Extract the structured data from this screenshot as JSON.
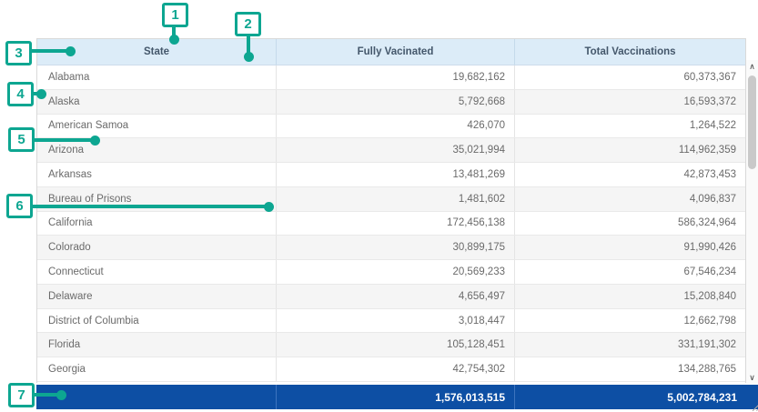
{
  "table": {
    "columns": [
      {
        "label": "State"
      },
      {
        "label": "Fully Vacinated"
      },
      {
        "label": "Total Vaccinations"
      }
    ],
    "rows": [
      {
        "state": "Alabama",
        "fully_vaccinated": "19,682,162",
        "total_vaccinations": "60,373,367"
      },
      {
        "state": "Alaska",
        "fully_vaccinated": "5,792,668",
        "total_vaccinations": "16,593,372"
      },
      {
        "state": "American Samoa",
        "fully_vaccinated": "426,070",
        "total_vaccinations": "1,264,522"
      },
      {
        "state": "Arizona",
        "fully_vaccinated": "35,021,994",
        "total_vaccinations": "114,962,359"
      },
      {
        "state": "Arkansas",
        "fully_vaccinated": "13,481,269",
        "total_vaccinations": "42,873,453"
      },
      {
        "state": "Bureau of Prisons",
        "fully_vaccinated": "1,481,602",
        "total_vaccinations": "4,096,837"
      },
      {
        "state": "California",
        "fully_vaccinated": "172,456,138",
        "total_vaccinations": "586,324,964"
      },
      {
        "state": "Colorado",
        "fully_vaccinated": "30,899,175",
        "total_vaccinations": "91,990,426"
      },
      {
        "state": "Connecticut",
        "fully_vaccinated": "20,569,233",
        "total_vaccinations": "67,546,234"
      },
      {
        "state": "Delaware",
        "fully_vaccinated": "4,656,497",
        "total_vaccinations": "15,208,840"
      },
      {
        "state": "District of Columbia",
        "fully_vaccinated": "3,018,447",
        "total_vaccinations": "12,662,798"
      },
      {
        "state": "Florida",
        "fully_vaccinated": "105,128,451",
        "total_vaccinations": "331,191,302"
      },
      {
        "state": "Georgia",
        "fully_vaccinated": "42,754,302",
        "total_vaccinations": "134,288,765"
      }
    ],
    "totals": {
      "fully_vaccinated": "1,576,013,515",
      "total_vaccinations": "5,002,784,231"
    }
  },
  "annotations": {
    "labels": [
      "1",
      "2",
      "3",
      "4",
      "5",
      "6",
      "7"
    ]
  },
  "icons": {
    "scroll_up": "∧",
    "scroll_down": "∨"
  },
  "colors": {
    "accent": "#0da691",
    "header_bg": "#dcecf8",
    "footer_bg": "#0d4fa4",
    "row_alt": "#f5f5f5"
  }
}
